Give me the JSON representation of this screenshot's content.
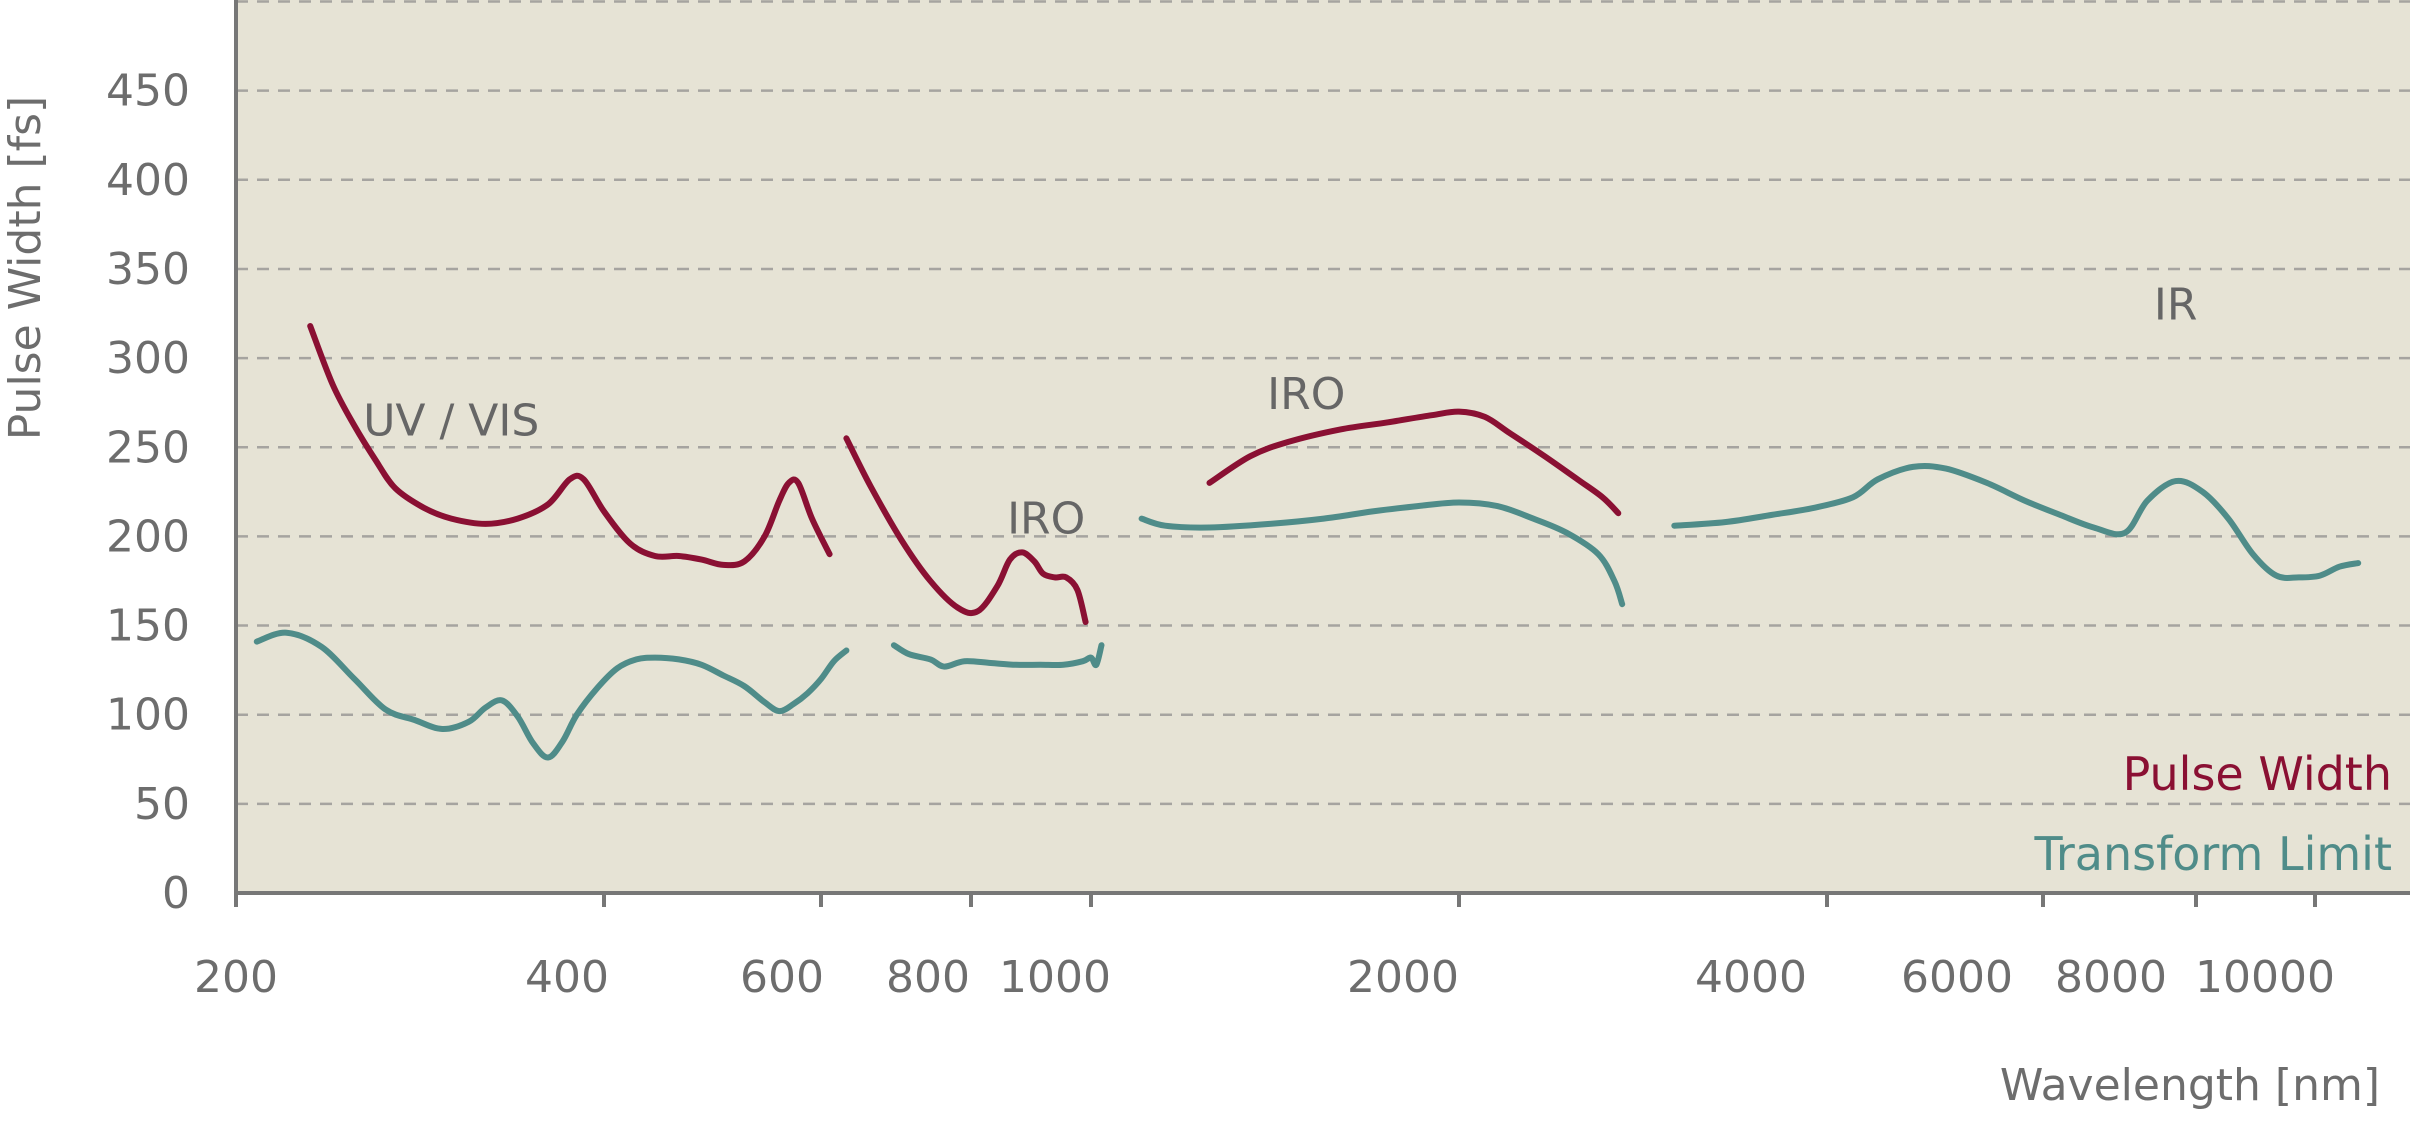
{
  "chart_data": {
    "type": "line",
    "title": "",
    "xlabel": "Wavelength [nm]",
    "ylabel": "Pulse Width [fs]",
    "xscale": "piecewise",
    "ylim": [
      0,
      500
    ],
    "grid": true,
    "legend_position": "bottom-right",
    "x_tick_labels": [
      "200",
      "400",
      "600",
      "800",
      "1000",
      "2000",
      "4000",
      "6000",
      "8000",
      "10000"
    ],
    "y_tick_labels": [
      "0",
      "50",
      "100",
      "150",
      "200",
      "250",
      "300",
      "350",
      "400",
      "450"
    ],
    "colors": {
      "pulse_width": "#8a1033",
      "transform_limit": "#4f8c89",
      "plot_background": "#e6e3d5",
      "grid": "#a6a4a0",
      "axis": "#777777"
    },
    "band_labels": [
      {
        "text": "UV / VIS",
        "x": 300,
        "y": 265
      },
      {
        "text": "IRO",
        "x": 920,
        "y": 210
      },
      {
        "text": "IRO",
        "x": 1500,
        "y": 280
      },
      {
        "text": "IR",
        "x": 7700,
        "y": 330
      }
    ],
    "legend": [
      {
        "label": "Pulse Width",
        "series": "pulse_width"
      },
      {
        "label": "Transform Limit",
        "series": "transform_limit"
      }
    ],
    "series": [
      {
        "name": "Pulse Width",
        "key": "pulse_width",
        "segment": "UV / VIS",
        "points": [
          [
            230,
            318
          ],
          [
            240,
            285
          ],
          [
            250,
            262
          ],
          [
            260,
            243
          ],
          [
            270,
            227
          ],
          [
            285,
            216
          ],
          [
            300,
            210
          ],
          [
            320,
            207
          ],
          [
            340,
            210
          ],
          [
            360,
            218
          ],
          [
            375,
            232
          ],
          [
            385,
            232
          ],
          [
            400,
            214
          ],
          [
            420,
            196
          ],
          [
            440,
            189
          ],
          [
            460,
            189
          ],
          [
            480,
            187
          ],
          [
            500,
            184
          ],
          [
            520,
            186
          ],
          [
            540,
            200
          ],
          [
            555,
            220
          ],
          [
            565,
            230
          ],
          [
            575,
            230
          ],
          [
            590,
            210
          ],
          [
            610,
            190
          ]
        ]
      },
      {
        "name": "Pulse Width",
        "key": "pulse_width",
        "segment": "IRO",
        "points": [
          [
            630,
            255
          ],
          [
            660,
            228
          ],
          [
            700,
            198
          ],
          [
            740,
            175
          ],
          [
            780,
            160
          ],
          [
            810,
            158
          ],
          [
            840,
            172
          ],
          [
            860,
            187
          ],
          [
            880,
            191
          ],
          [
            900,
            186
          ],
          [
            915,
            179
          ],
          [
            935,
            177
          ],
          [
            955,
            177
          ],
          [
            975,
            170
          ],
          [
            990,
            152
          ]
        ]
      },
      {
        "name": "Pulse Width",
        "key": "pulse_width",
        "segment": "IRO",
        "points": [
          [
            1250,
            230
          ],
          [
            1350,
            245
          ],
          [
            1450,
            253
          ],
          [
            1600,
            260
          ],
          [
            1750,
            264
          ],
          [
            1900,
            268
          ],
          [
            2000,
            270
          ],
          [
            2100,
            267
          ],
          [
            2200,
            258
          ],
          [
            2350,
            245
          ],
          [
            2500,
            232
          ],
          [
            2620,
            222
          ],
          [
            2700,
            213
          ]
        ]
      },
      {
        "name": "Transform Limit",
        "key": "transform_limit",
        "segment": "UV / VIS",
        "points": [
          [
            208,
            141
          ],
          [
            220,
            146
          ],
          [
            235,
            138
          ],
          [
            250,
            120
          ],
          [
            265,
            103
          ],
          [
            280,
            97
          ],
          [
            295,
            92
          ],
          [
            310,
            96
          ],
          [
            320,
            104
          ],
          [
            330,
            108
          ],
          [
            340,
            99
          ],
          [
            350,
            84
          ],
          [
            360,
            76
          ],
          [
            370,
            85
          ],
          [
            380,
            100
          ],
          [
            395,
            115
          ],
          [
            410,
            126
          ],
          [
            425,
            131
          ],
          [
            440,
            132
          ],
          [
            460,
            131
          ],
          [
            480,
            128
          ],
          [
            500,
            122
          ],
          [
            520,
            116
          ],
          [
            540,
            107
          ],
          [
            555,
            102
          ],
          [
            570,
            106
          ],
          [
            585,
            112
          ],
          [
            600,
            120
          ],
          [
            615,
            130
          ],
          [
            630,
            136
          ]
        ]
      },
      {
        "name": "Transform Limit",
        "key": "transform_limit",
        "segment": "IRO",
        "points": [
          [
            690,
            139
          ],
          [
            710,
            134
          ],
          [
            740,
            131
          ],
          [
            760,
            127
          ],
          [
            790,
            130
          ],
          [
            830,
            129
          ],
          [
            870,
            128
          ],
          [
            910,
            128
          ],
          [
            950,
            128
          ],
          [
            985,
            130
          ],
          [
            1000,
            132
          ],
          [
            1010,
            128
          ],
          [
            1020,
            139
          ]
        ]
      },
      {
        "name": "Transform Limit",
        "key": "transform_limit",
        "segment": "IRO",
        "points": [
          [
            1100,
            210
          ],
          [
            1150,
            206
          ],
          [
            1250,
            205
          ],
          [
            1400,
            207
          ],
          [
            1550,
            210
          ],
          [
            1700,
            214
          ],
          [
            1850,
            217
          ],
          [
            2000,
            219
          ],
          [
            2150,
            217
          ],
          [
            2300,
            210
          ],
          [
            2450,
            202
          ],
          [
            2600,
            190
          ],
          [
            2680,
            175
          ],
          [
            2720,
            162
          ]
        ]
      },
      {
        "name": "Transform Limit",
        "key": "transform_limit",
        "segment": "IR",
        "points": [
          [
            3000,
            206
          ],
          [
            3300,
            208
          ],
          [
            3600,
            212
          ],
          [
            3900,
            216
          ],
          [
            4200,
            222
          ],
          [
            4400,
            232
          ],
          [
            4700,
            239
          ],
          [
            5000,
            238
          ],
          [
            5400,
            230
          ],
          [
            5800,
            220
          ],
          [
            6200,
            212
          ],
          [
            6600,
            205
          ],
          [
            7000,
            202
          ],
          [
            7300,
            220
          ],
          [
            7700,
            231
          ],
          [
            8100,
            225
          ],
          [
            8500,
            210
          ],
          [
            8900,
            190
          ],
          [
            9300,
            178
          ],
          [
            9700,
            177
          ],
          [
            10100,
            178
          ],
          [
            10500,
            183
          ],
          [
            10900,
            185
          ]
        ]
      }
    ]
  }
}
